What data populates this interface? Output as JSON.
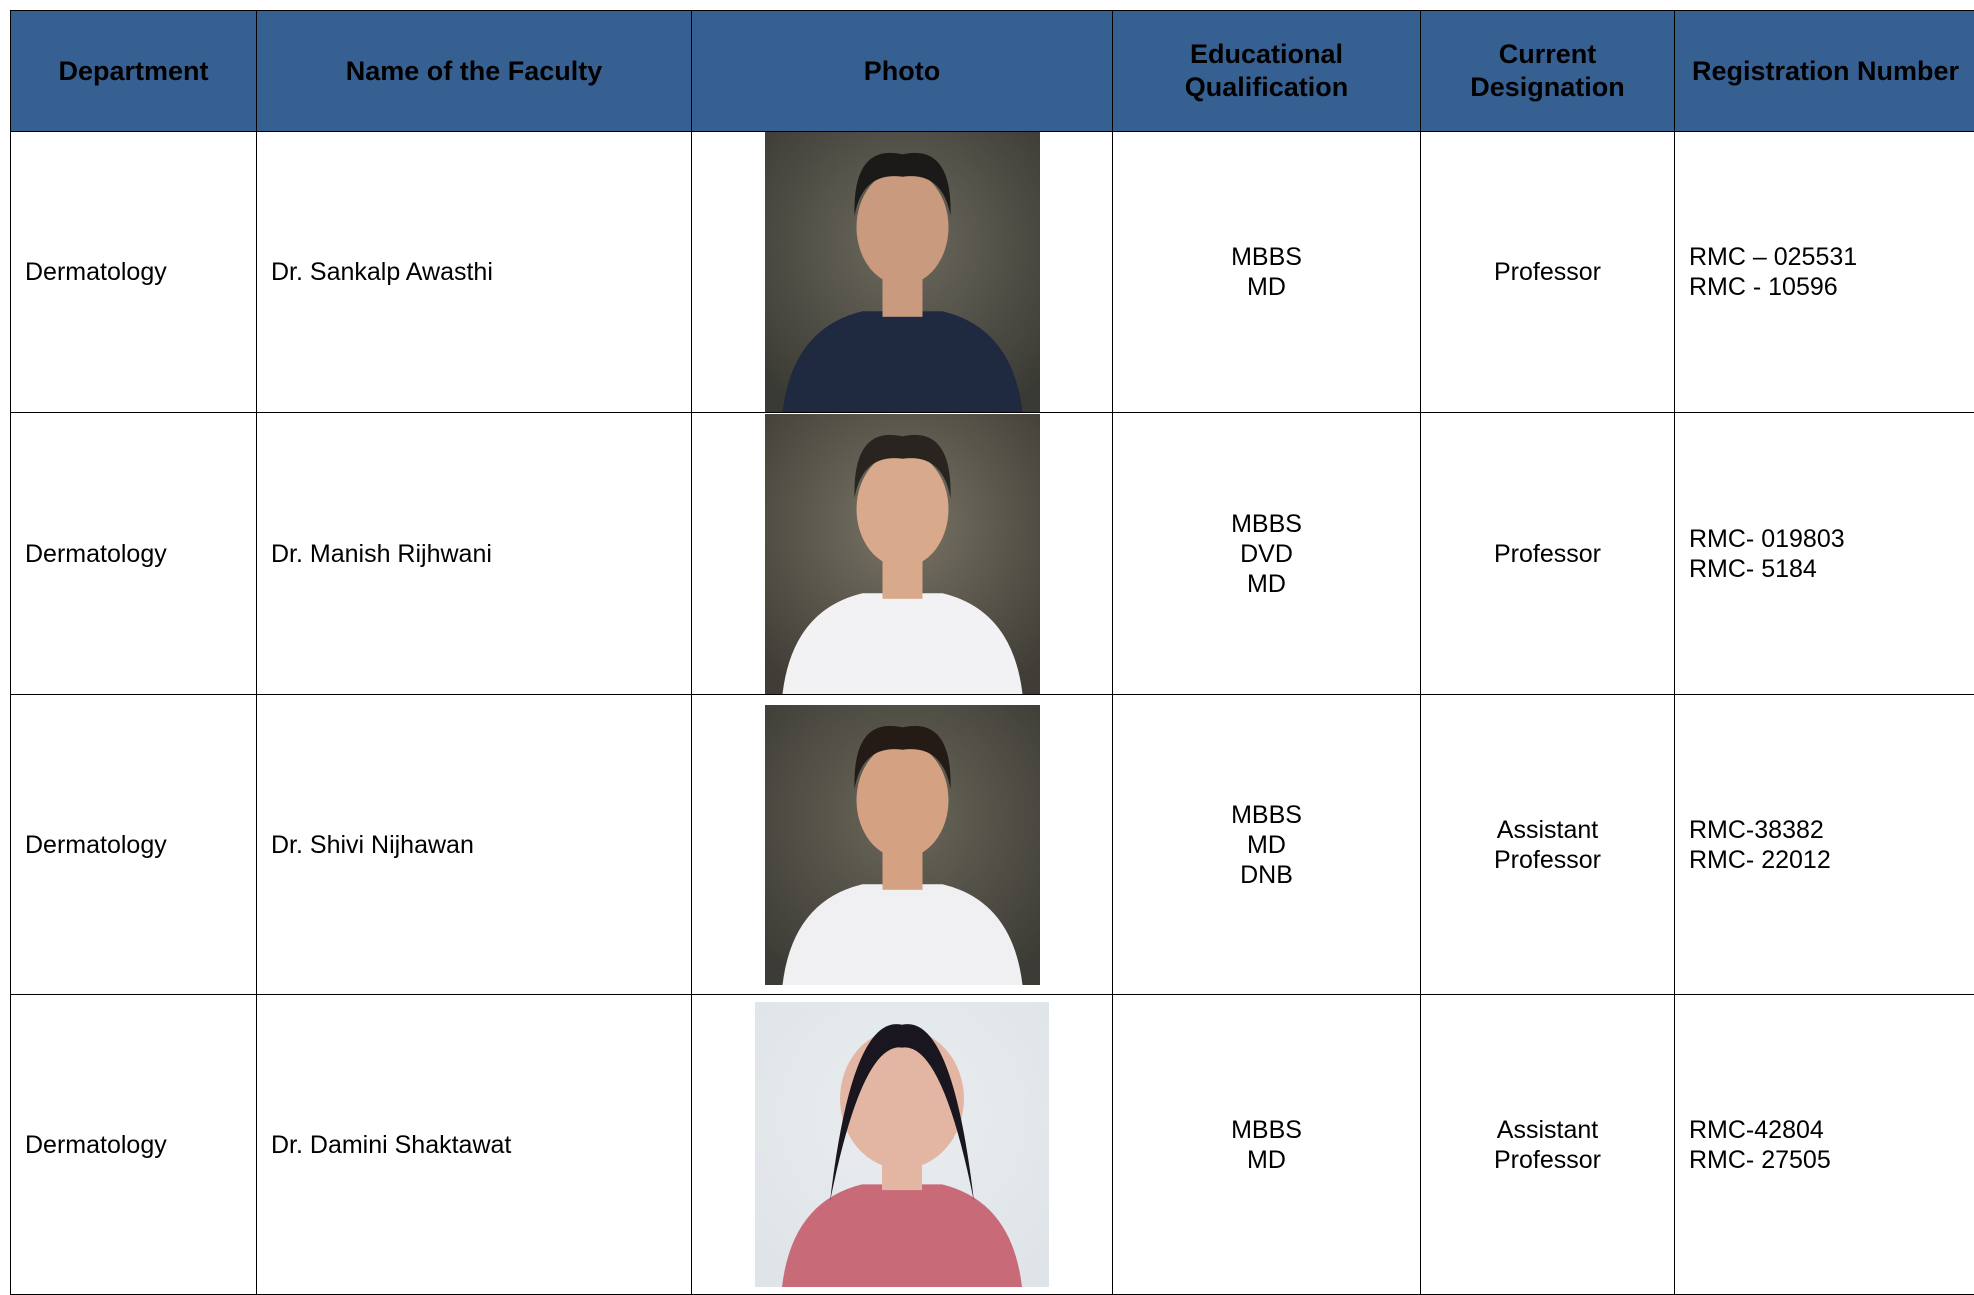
{
  "table": {
    "headers": [
      "Department",
      "Name of the Faculty",
      "Photo",
      "Educational Qualification",
      "Current Designation",
      "Registration Number"
    ],
    "rows": [
      {
        "department": "Dermatology",
        "name": "Dr. Sankalp Awasthi",
        "qualification": [
          "MBBS",
          "MD"
        ],
        "designation": [
          "Professor"
        ],
        "registration": [
          "RMC – 025531",
          "RMC - 10596"
        ]
      },
      {
        "department": "Dermatology",
        "name": "Dr. Manish Rijhwani",
        "qualification": [
          "MBBS",
          "DVD",
          "MD"
        ],
        "designation": [
          "Professor"
        ],
        "registration": [
          "RMC- 019803",
          "RMC- 5184"
        ]
      },
      {
        "department": "Dermatology",
        "name": "Dr. Shivi Nijhawan",
        "qualification": [
          "MBBS",
          "MD",
          "DNB"
        ],
        "designation": [
          "Assistant",
          "Professor"
        ],
        "registration": [
          "RMC-38382",
          "RMC- 22012"
        ]
      },
      {
        "department": "Dermatology",
        "name": "Dr. Damini Shaktawat",
        "qualification": [
          "MBBS",
          "MD"
        ],
        "designation": [
          "Assistant",
          "Professor"
        ],
        "registration": [
          "RMC-42804",
          "RMC- 27505"
        ]
      }
    ]
  }
}
